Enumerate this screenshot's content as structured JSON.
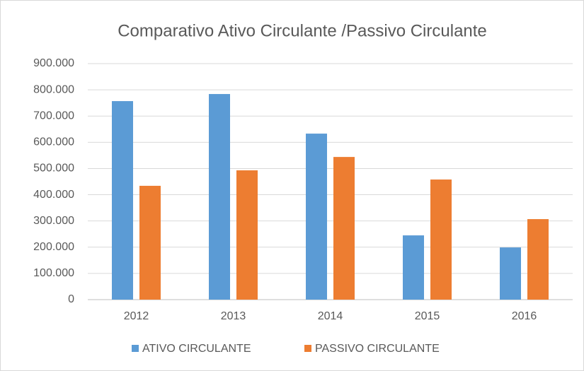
{
  "chart_data": {
    "type": "bar",
    "title": "Comparativo Ativo Circulante /Passivo Circulante",
    "categories": [
      "2012",
      "2013",
      "2014",
      "2015",
      "2016"
    ],
    "series": [
      {
        "name": "ATIVO CIRCULANTE",
        "color": "#5b9bd5",
        "values": [
          757000,
          784000,
          633000,
          245000,
          199000
        ]
      },
      {
        "name": "PASSIVO CIRCULANTE",
        "color": "#ed7d31",
        "values": [
          434000,
          493000,
          544000,
          458000,
          307000
        ]
      }
    ],
    "ylim": [
      0,
      900000
    ],
    "yticks": [
      0,
      {
        "value": 100000,
        "label": "100.000"
      },
      {
        "value": 200000,
        "label": "200.000"
      },
      {
        "value": 300000,
        "label": "300.000"
      },
      {
        "value": 400000,
        "label": "400.000"
      },
      {
        "value": 500000,
        "label": "500.000"
      },
      {
        "value": 600000,
        "label": "600.000"
      },
      {
        "value": 700000,
        "label": "700.000"
      },
      {
        "value": 800000,
        "label": "800.000"
      },
      {
        "value": 900000,
        "label": "900.000"
      }
    ],
    "grid": true,
    "legend": "bottom"
  }
}
